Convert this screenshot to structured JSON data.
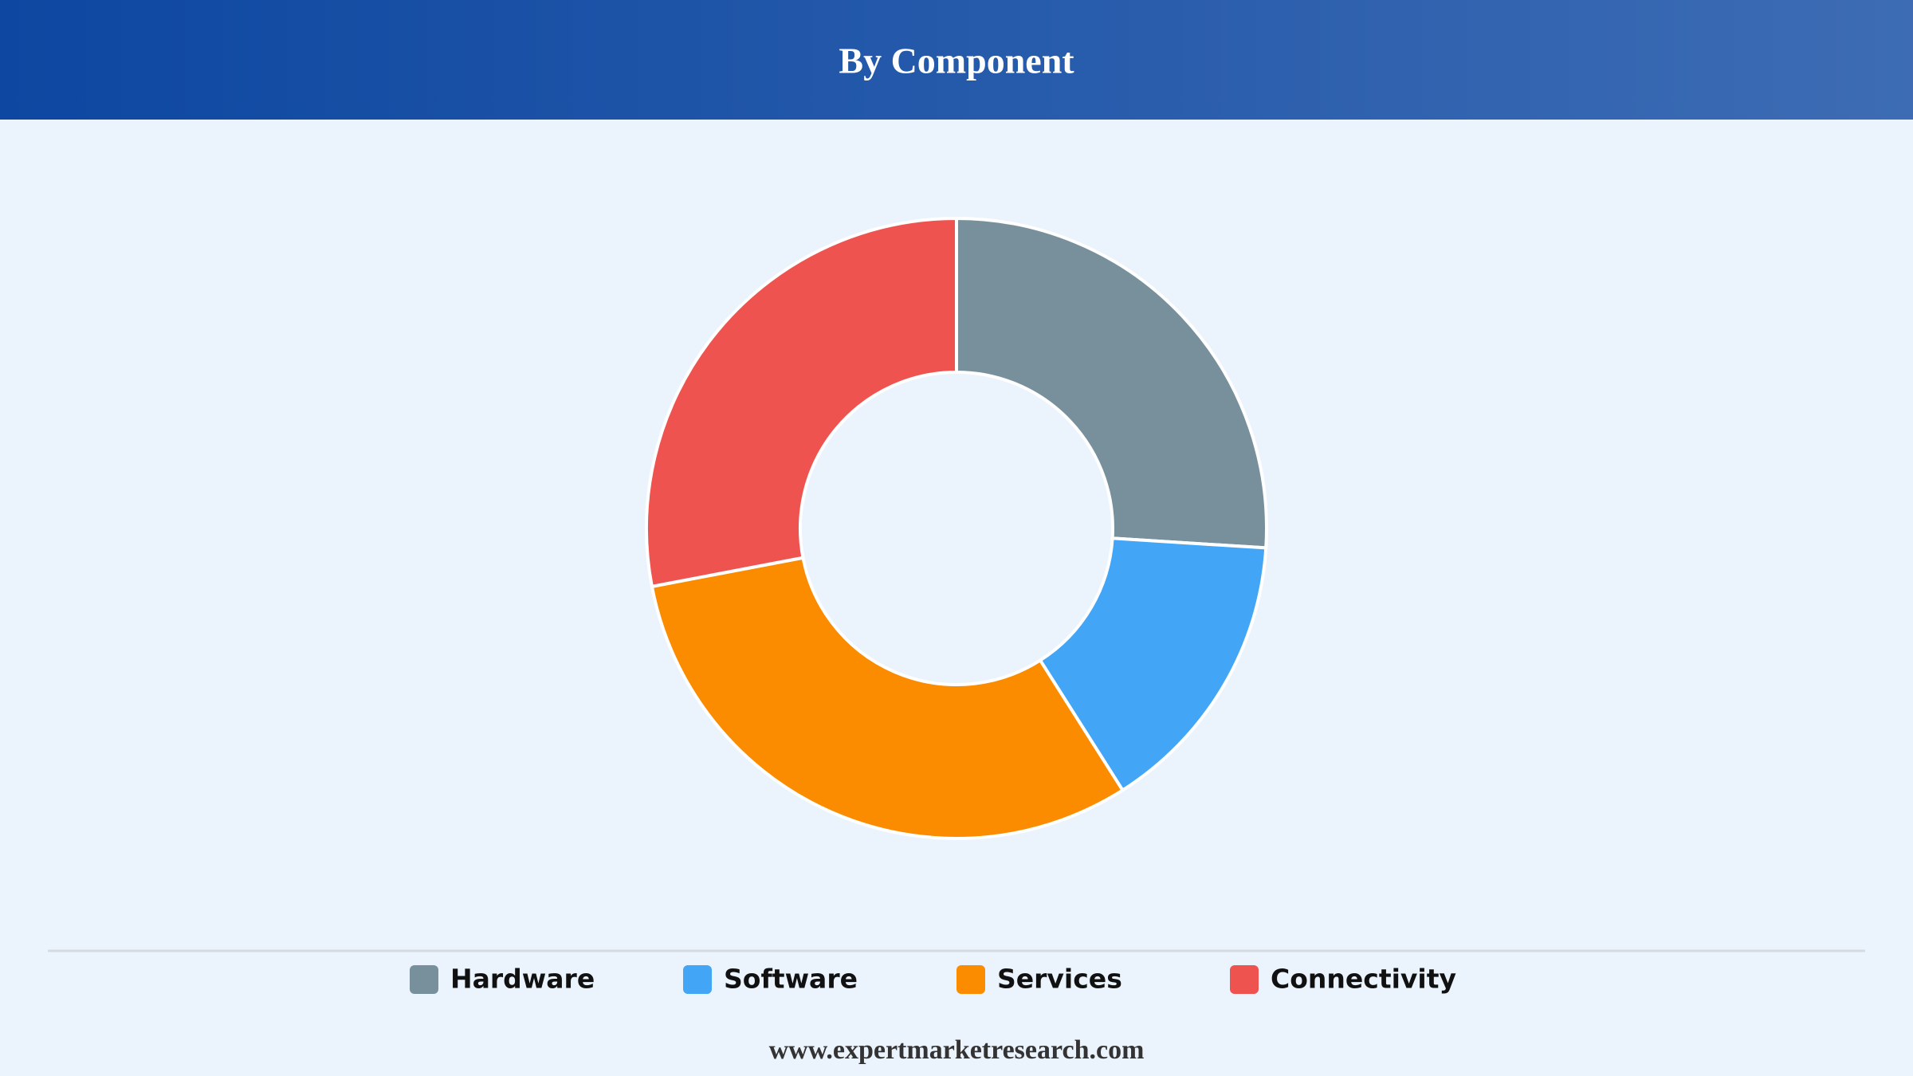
{
  "chart_data": {
    "type": "pie",
    "donut": true,
    "title": "By Component",
    "categories": [
      "Hardware",
      "Software",
      "Services",
      "Connectivity"
    ],
    "values": [
      26,
      15,
      31,
      28
    ],
    "colors": [
      "#78909c",
      "#42a5f5",
      "#fb8c00",
      "#ef5350"
    ],
    "legend": "bottom",
    "footer": "www.expertmarketresearch.com"
  }
}
